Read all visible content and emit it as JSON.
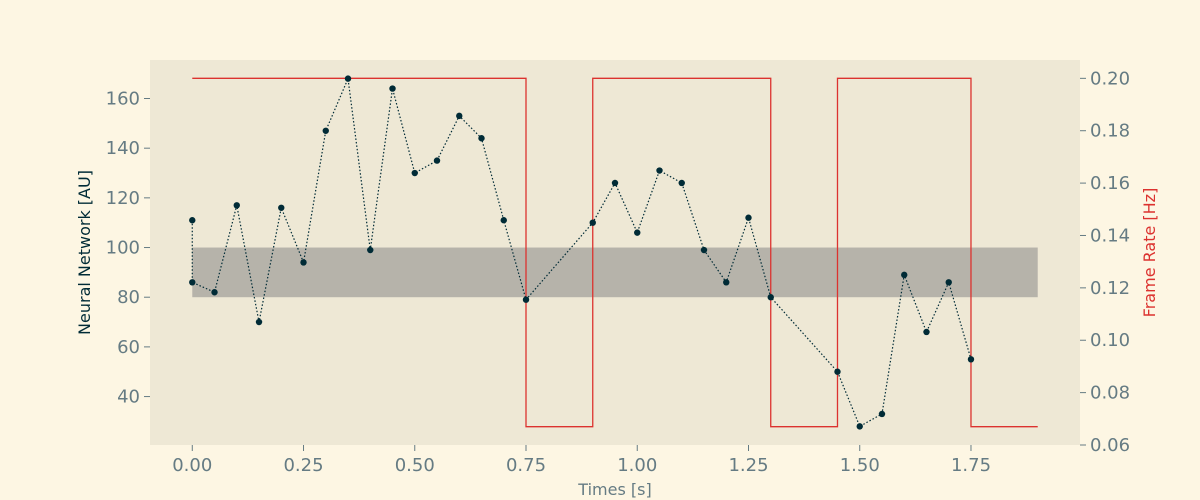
{
  "chart_data": {
    "type": "line",
    "xlabel": "Times [s]",
    "ylabel": "Neural Network [AU]",
    "y2label": "Frame Rate [Hz]",
    "xlim": [
      -0.095,
      1.995
    ],
    "ylim": [
      20.5,
      175.5
    ],
    "y2lim": [
      0.06,
      0.207
    ],
    "x_ticks": [
      0.0,
      0.25,
      0.5,
      0.75,
      1.0,
      1.25,
      1.5,
      1.75
    ],
    "x_tick_labels": [
      "0.00",
      "0.25",
      "0.50",
      "0.75",
      "1.00",
      "1.25",
      "1.50",
      "1.75"
    ],
    "y_ticks": [
      40,
      60,
      80,
      100,
      120,
      140,
      160
    ],
    "y_tick_labels": [
      "40",
      "60",
      "80",
      "100",
      "120",
      "140",
      "160"
    ],
    "y2_ticks": [
      0.06,
      0.08,
      0.1,
      0.12,
      0.14,
      0.16,
      0.18,
      0.2
    ],
    "y2_tick_labels": [
      "0.06",
      "0.08",
      "0.10",
      "0.12",
      "0.14",
      "0.16",
      "0.18",
      "0.20"
    ],
    "grid": false,
    "colors": {
      "background": "#fdf6e3",
      "plot_area": "#eee8d5",
      "band": "#b6b3aa",
      "points": "#002b36",
      "step_line": "#dc322f",
      "ticks": "#657b83",
      "ylabel": "#002b36",
      "y2label": "#dc322f"
    },
    "band": {
      "ymin": 80,
      "ymax": 100,
      "xmin": 0.0,
      "xmax": 1.9
    },
    "series": [
      {
        "axis": "left",
        "style": "dotted-line-with-markers",
        "x": [
          0.0,
          0.0,
          0.05,
          0.1,
          0.15,
          0.2,
          0.25,
          0.3,
          0.35,
          0.4,
          0.45,
          0.5,
          0.55,
          0.6,
          0.65,
          0.7,
          0.75,
          0.9,
          0.95,
          1.0,
          1.05,
          1.1,
          1.15,
          1.2,
          1.25,
          1.3,
          1.45,
          1.5,
          1.55,
          1.6,
          1.65,
          1.7,
          1.75
        ],
        "y": [
          111,
          86,
          82,
          117,
          70,
          116,
          94,
          147,
          168,
          99,
          164,
          130,
          135,
          153,
          144,
          111,
          79,
          110,
          126,
          106,
          131,
          126,
          99,
          86,
          112,
          80,
          50,
          28,
          33,
          89,
          66,
          86,
          55
        ]
      },
      {
        "axis": "right",
        "style": "step",
        "x": [
          0.0,
          0.75,
          0.75,
          0.9,
          0.9,
          1.3,
          1.3,
          1.45,
          1.45,
          1.75,
          1.75,
          1.9
        ],
        "y": [
          0.2,
          0.2,
          0.067,
          0.067,
          0.2,
          0.2,
          0.067,
          0.067,
          0.2,
          0.2,
          0.067,
          0.067
        ]
      }
    ]
  }
}
